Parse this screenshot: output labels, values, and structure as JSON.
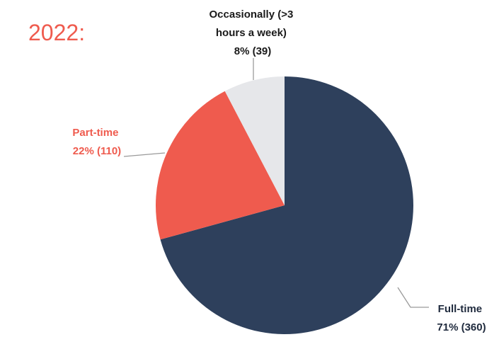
{
  "year_label": "2022:",
  "colors": {
    "full_time": "#2e405c",
    "part_time": "#ef5b4e",
    "occasionally": "#e6e7ea",
    "leader": "#9a9a9a",
    "label_dark": "#1f2a3d",
    "accent": "#ef5b4e"
  },
  "chart_data": {
    "type": "pie",
    "title": "2022:",
    "slices": [
      {
        "key": "full_time",
        "label_line1": "Full-time",
        "label_line2": "71% (360)",
        "value": 360,
        "percent": 71
      },
      {
        "key": "part_time",
        "label_line1": "Part-time",
        "label_line2": "22% (110)",
        "value": 110,
        "percent": 22
      },
      {
        "key": "occasionally",
        "label_line1": "Occasionally (>3",
        "label_line2": "hours a week)",
        "label_line3": "8% (39)",
        "value": 39,
        "percent": 8
      }
    ]
  }
}
